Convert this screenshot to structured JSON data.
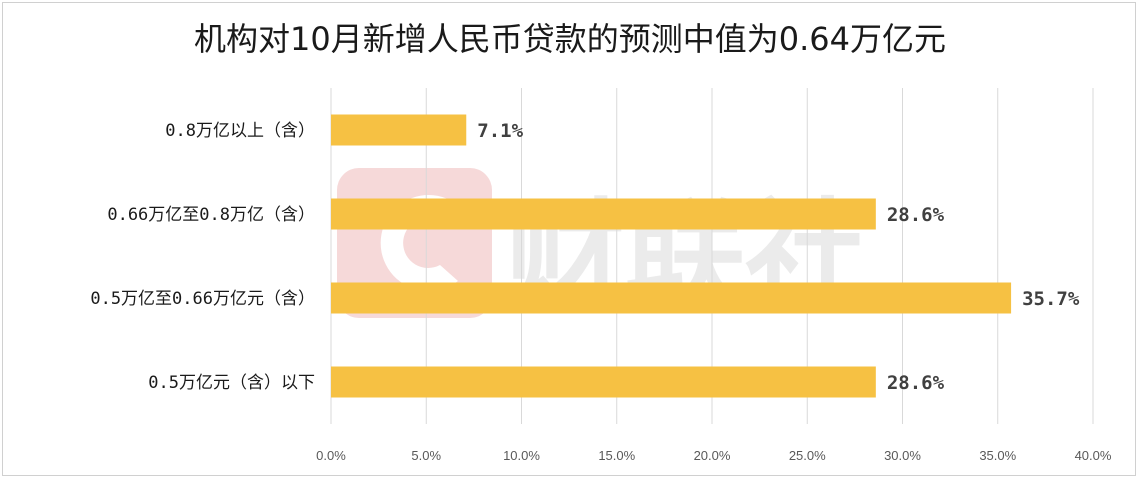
{
  "chart_data": {
    "type": "bar",
    "orientation": "horizontal",
    "title": "机构对10月新增人民币贷款的预测中值为0.64万亿元",
    "categories": [
      "0.8万亿以上（含）",
      "0.66万亿至0.8万亿（含）",
      "0.5万亿至0.66万亿元（含）",
      "0.5万亿元（含）以下"
    ],
    "values": [
      7.1,
      28.6,
      35.7,
      28.6
    ],
    "value_labels": [
      "7.1%",
      "28.6%",
      "35.7%",
      "28.6%"
    ],
    "xlim": [
      0,
      40
    ],
    "x_ticks": [
      "0.0%",
      "5.0%",
      "10.0%",
      "15.0%",
      "20.0%",
      "25.0%",
      "30.0%",
      "35.0%",
      "40.0%"
    ],
    "grid": "vertical",
    "bar_color": "#F6C143",
    "grid_color": "#d9d9d9"
  },
  "watermark": {
    "text": "财联社",
    "color": "#f4d4d4"
  }
}
